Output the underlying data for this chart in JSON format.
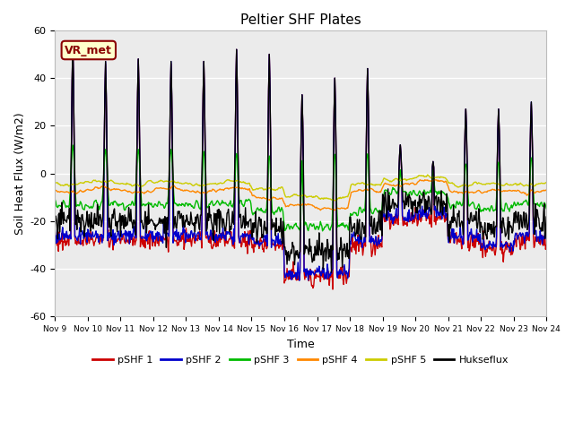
{
  "title": "Peltier SHF Plates",
  "xlabel": "Time",
  "ylabel": "Soil Heat Flux (W/m2)",
  "ylim": [
    -60,
    60
  ],
  "xlim": [
    0,
    360
  ],
  "xtick_labels": [
    "Nov 9",
    "Nov 10",
    "Nov 11",
    "Nov 12",
    "Nov 13",
    "Nov 14",
    "Nov 15",
    "Nov 16",
    "Nov 17",
    "Nov 18",
    "Nov 19",
    "Nov 20",
    "Nov 21",
    "Nov 22",
    "Nov 23",
    "Nov 24"
  ],
  "xtick_positions": [
    0,
    24,
    48,
    72,
    96,
    120,
    144,
    168,
    192,
    216,
    240,
    264,
    288,
    312,
    336,
    360
  ],
  "ytick_labels": [
    "-60",
    "-40",
    "-20",
    "0",
    "20",
    "40",
    "60"
  ],
  "ytick_values": [
    -60,
    -40,
    -20,
    0,
    20,
    40,
    60
  ],
  "colors": {
    "pSHF1": "#cc0000",
    "pSHF2": "#0000cc",
    "pSHF3": "#00bb00",
    "pSHF4": "#ff8800",
    "pSHF5": "#cccc00",
    "Hukseflux": "#000000"
  },
  "legend_labels": [
    "pSHF 1",
    "pSHF 2",
    "pSHF 3",
    "pSHF 4",
    "pSHF 5",
    "Hukseflux"
  ],
  "annotation_text": "VR_met",
  "fig_bg": "#ffffff",
  "plot_bg": "#ebebeb",
  "grid_color": "#ffffff",
  "annotation_facecolor": "#ffffcc",
  "annotation_edgecolor": "#8B0000",
  "annotation_textcolor": "#8B0000"
}
